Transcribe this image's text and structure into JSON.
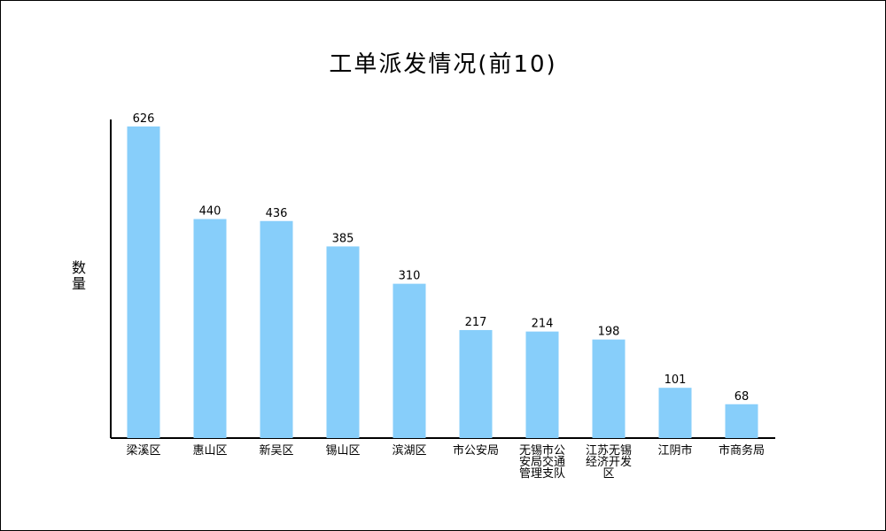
{
  "chart_data": {
    "type": "bar",
    "title": "工单派发情况(前10)",
    "xlabel": "",
    "ylabel": "数量",
    "categories": [
      "梁溪区",
      "惠山区",
      "新吴区",
      "锡山区",
      "滨湖区",
      "市公安局",
      "无锡市公安局交通管理支队",
      "江苏无锡经济开发区",
      "江阴市",
      "市商务局"
    ],
    "category_lines": [
      [
        "梁溪区"
      ],
      [
        "惠山区"
      ],
      [
        "新吴区"
      ],
      [
        "锡山区"
      ],
      [
        "滨湖区"
      ],
      [
        "市公安局"
      ],
      [
        "无锡市公",
        "安局交通",
        "管理支队"
      ],
      [
        "江苏无锡",
        "经济开发",
        "区"
      ],
      [
        "江阴市"
      ],
      [
        "市商务局"
      ]
    ],
    "series": [
      {
        "values": [
          626,
          440,
          436,
          385,
          310,
          217,
          214,
          198,
          101,
          68
        ]
      }
    ],
    "ylim": [
      0,
      640
    ],
    "grid": false,
    "bar_color": "#87CEFA",
    "axis_color": "#000000"
  }
}
